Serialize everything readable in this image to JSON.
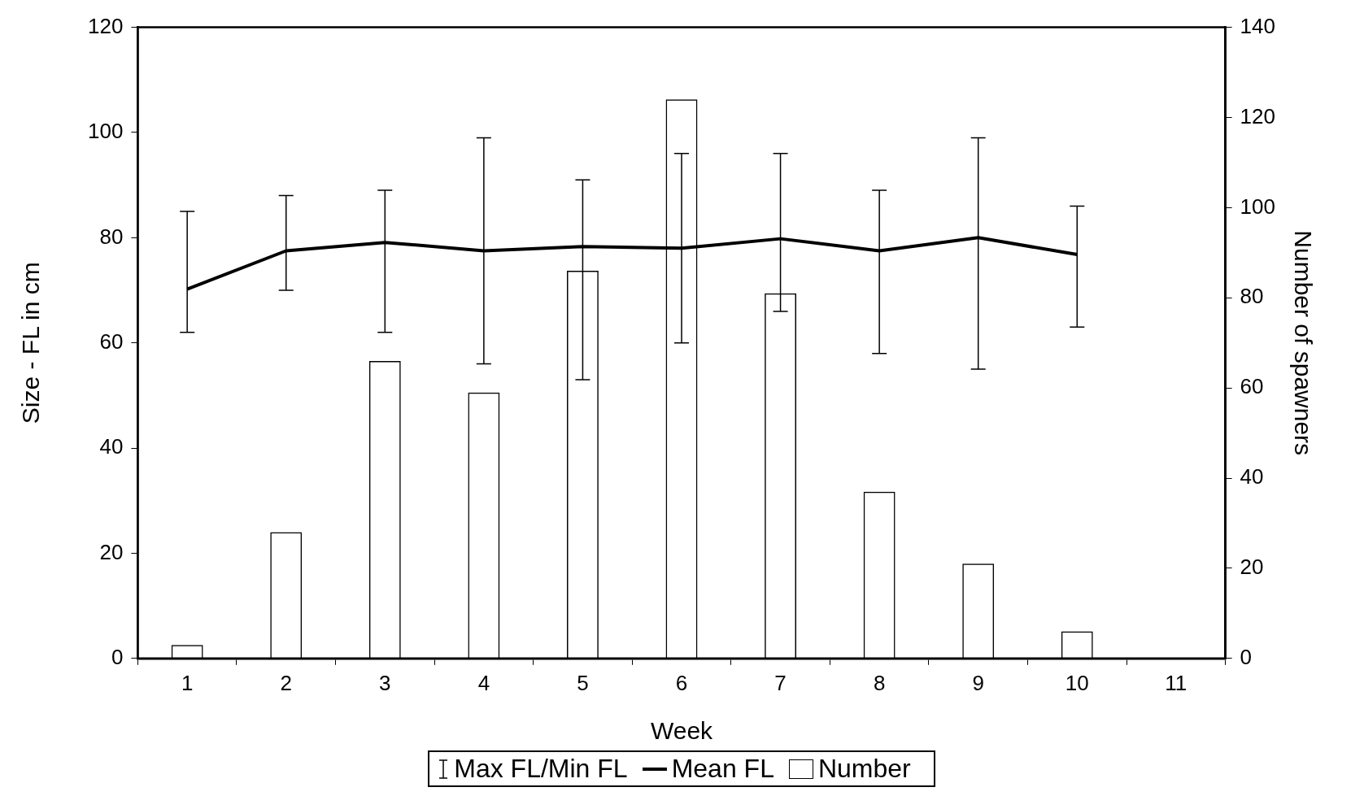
{
  "chart_data": {
    "type": "bar",
    "xlabel": "Week",
    "ylabel": "Size - FL in cm",
    "y2label": "Number of spawners",
    "categories": [
      "1",
      "2",
      "3",
      "4",
      "5",
      "6",
      "7",
      "8",
      "9",
      "10",
      "11"
    ],
    "series": [
      {
        "name": "Mean FL",
        "type": "line",
        "color": "#000000",
        "values": [
          70.2,
          77.5,
          79.1,
          77.5,
          78.3,
          78,
          79.8,
          77.5,
          80,
          76.8,
          null
        ],
        "errors": [
          [
            62,
            85
          ],
          [
            70,
            88
          ],
          [
            62,
            89
          ],
          [
            56,
            99
          ],
          [
            53,
            91
          ],
          [
            60,
            96
          ],
          [
            66,
            96
          ],
          [
            58,
            89
          ],
          [
            55,
            99
          ],
          [
            63,
            86
          ],
          null
        ]
      },
      {
        "name": "Number",
        "axis": "y2",
        "color": "#000000",
        "values": [
          3,
          28,
          66,
          59,
          86,
          124,
          81,
          37,
          21,
          6,
          null
        ]
      }
    ],
    "annotations": [
      "Max FL/Min FL"
    ],
    "ylim": [
      0,
      120
    ],
    "yticks": [
      0,
      20,
      40,
      60,
      80,
      100,
      120
    ],
    "y2lim": [
      0,
      140
    ],
    "y2ticks": [
      0,
      20,
      40,
      60,
      80,
      100,
      120,
      140
    ],
    "grid": false,
    "legend": "bottom",
    "marker": "none",
    "line_style": "solid"
  }
}
